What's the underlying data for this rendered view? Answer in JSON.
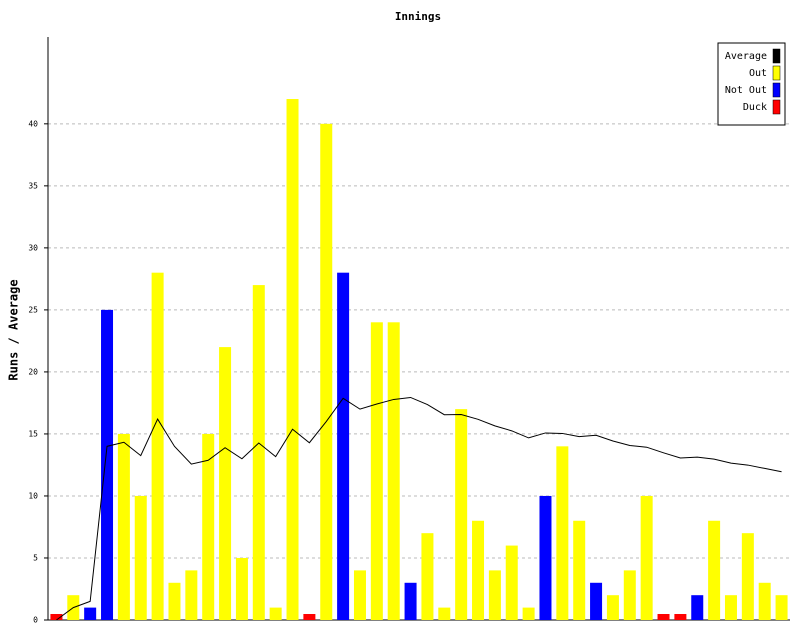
{
  "chart_data": {
    "type": "bar",
    "title": "Innings",
    "y_label": "Runs / Average",
    "ylim": [
      0,
      47
    ],
    "yticks": [
      0,
      5,
      10,
      15,
      20,
      25,
      30,
      35,
      40
    ],
    "grid": true,
    "legend": "top-right",
    "series": [
      {
        "name": "Average",
        "color": "#000000",
        "type": "line",
        "values": [
          0,
          1,
          1.5,
          14,
          14.33,
          13.25,
          16.2,
          14,
          12.57,
          12.88,
          13.89,
          13,
          14.27,
          13.17,
          15.38,
          14.29,
          16,
          17.87,
          17,
          17.41,
          17.78,
          17.94,
          17.37,
          16.55,
          16.57,
          16.18,
          15.65,
          15.25,
          14.68,
          15.08,
          15.04,
          14.78,
          14.89,
          14.43,
          14.07,
          13.93,
          13.48,
          13.06,
          13.13,
          12.97,
          12.65,
          12.49,
          12.22,
          11.95
        ]
      },
      {
        "name": "Out",
        "color": "#ffff00",
        "type": "bar",
        "values": [
          null,
          2,
          null,
          null,
          15,
          10,
          28,
          3,
          4,
          15,
          22,
          5,
          27,
          1,
          42,
          null,
          40,
          null,
          4,
          24,
          24,
          null,
          7,
          1,
          17,
          8,
          4,
          6,
          1,
          null,
          14,
          8,
          null,
          2,
          4,
          10,
          null,
          null,
          null,
          8,
          2,
          7,
          3,
          2
        ]
      },
      {
        "name": "Not Out",
        "color": "#0000ff",
        "type": "bar",
        "values": [
          null,
          null,
          1,
          25,
          null,
          null,
          null,
          null,
          null,
          null,
          null,
          null,
          null,
          null,
          null,
          null,
          null,
          28,
          null,
          null,
          null,
          3,
          null,
          null,
          null,
          null,
          null,
          null,
          null,
          10,
          null,
          null,
          3,
          null,
          null,
          null,
          null,
          null,
          2,
          null,
          null,
          null,
          null,
          null
        ]
      },
      {
        "name": "Duck",
        "color": "#ff0000",
        "type": "bar",
        "values": [
          0,
          null,
          null,
          null,
          null,
          null,
          null,
          null,
          null,
          null,
          null,
          null,
          null,
          null,
          null,
          0,
          null,
          null,
          null,
          null,
          null,
          null,
          null,
          null,
          null,
          null,
          null,
          null,
          null,
          null,
          null,
          null,
          null,
          null,
          null,
          null,
          0,
          0,
          null,
          null,
          null,
          null,
          null,
          null
        ]
      }
    ]
  }
}
